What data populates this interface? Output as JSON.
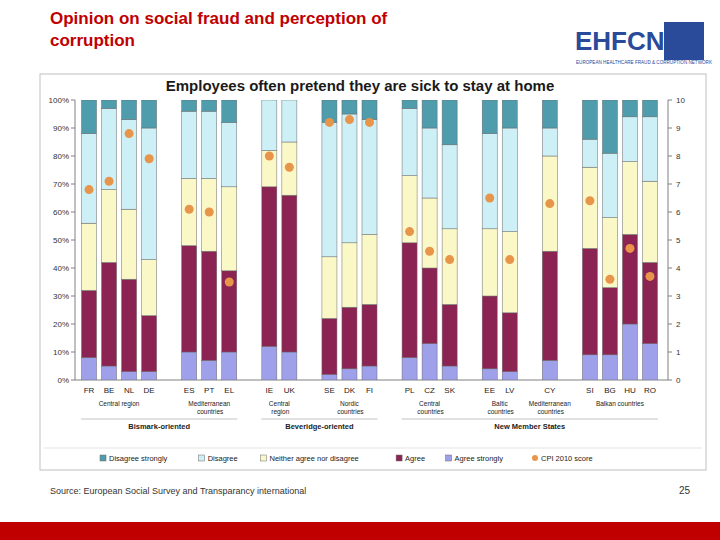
{
  "slide_title": "Opinion on social fraud and perception of corruption",
  "logo": {
    "text": "EHFCN",
    "subtitle": "EUROPEAN HEALTHCARE FRAUD & CORRUPTION NETWORK"
  },
  "source": "Source: European Social Survey and Transparancy international",
  "page_number": "25",
  "chart_data": {
    "type": "bar",
    "title": "Employees often pretend they are sick to stay at home",
    "stacked": true,
    "grid": false,
    "legend": "bottom",
    "categories": [
      "FR",
      "BE",
      "NL",
      "DE",
      "ES",
      "PT",
      "EL",
      "IE",
      "UK",
      "SE",
      "DK",
      "FI",
      "PL",
      "CZ",
      "SK",
      "EE",
      "LV",
      "CY",
      "SI",
      "BG",
      "HU",
      "RO"
    ],
    "groups": [
      {
        "label": "Central region",
        "categories": [
          "FR",
          "BE",
          "NL",
          "DE"
        ]
      },
      {
        "label": "Mediterranean countries",
        "categories": [
          "ES",
          "PT",
          "EL"
        ]
      },
      {
        "label": "Central region",
        "categories": [
          "IE",
          "UK"
        ]
      },
      {
        "label": "Nordic countries",
        "categories": [
          "SE",
          "DK",
          "FI"
        ]
      },
      {
        "label": "Central countries",
        "categories": [
          "PL",
          "CZ",
          "SK"
        ]
      },
      {
        "label": "Baltic countries",
        "categories": [
          "EE",
          "LV"
        ]
      },
      {
        "label": "Mediterranean countries",
        "categories": [
          "CY"
        ]
      },
      {
        "label": "Balkan countries",
        "categories": [
          "SI",
          "BG",
          "HU",
          "RO"
        ]
      }
    ],
    "supergroups": [
      {
        "label": "Bismark-oriented",
        "categories": [
          "FR",
          "BE",
          "NL",
          "DE",
          "ES",
          "PT",
          "EL"
        ]
      },
      {
        "label": "Beveridge-oriented",
        "categories": [
          "IE",
          "UK",
          "SE",
          "DK",
          "FI"
        ]
      },
      {
        "label": "New Member States",
        "categories": [
          "PL",
          "CZ",
          "SK",
          "EE",
          "LV",
          "CY",
          "SI",
          "BG",
          "HU",
          "RO"
        ]
      }
    ],
    "series": [
      {
        "name": "Disagree strongly",
        "color": "#4f9cac",
        "values": [
          12,
          3,
          7,
          10,
          4,
          4,
          8,
          0,
          0,
          8,
          5,
          7,
          3,
          10,
          16,
          12,
          10,
          10,
          14,
          19,
          6,
          6
        ]
      },
      {
        "name": "Disagree",
        "color": "#cdeff6",
        "values": [
          32,
          29,
          32,
          47,
          24,
          24,
          23,
          18,
          15,
          48,
          46,
          41,
          24,
          25,
          30,
          34,
          37,
          10,
          10,
          23,
          16,
          23
        ]
      },
      {
        "name": "Neither agree nor disagree",
        "color": "#fbf8c8",
        "values": [
          24,
          26,
          25,
          20,
          24,
          26,
          30,
          13,
          19,
          22,
          23,
          25,
          24,
          25,
          27,
          24,
          29,
          34,
          29,
          25,
          26,
          29
        ]
      },
      {
        "name": "Agree",
        "color": "#8c2453",
        "values": [
          24,
          37,
          33,
          20,
          38,
          39,
          29,
          57,
          56,
          20,
          22,
          22,
          41,
          27,
          22,
          26,
          21,
          39,
          38,
          24,
          32,
          29
        ]
      },
      {
        "name": "Agree strongly",
        "color": "#9fa0ea",
        "values": [
          8,
          5,
          3,
          3,
          10,
          7,
          10,
          12,
          10,
          2,
          4,
          5,
          8,
          13,
          5,
          4,
          3,
          7,
          9,
          9,
          20,
          13
        ]
      },
      {
        "name": "CPI 2010 score",
        "color": "#e8954c",
        "type": "scatter",
        "marker": "circle",
        "axis": "y2",
        "values": [
          6.8,
          7.1,
          8.8,
          7.9,
          6.1,
          6.0,
          3.5,
          8.0,
          7.6,
          9.2,
          9.3,
          9.2,
          5.3,
          4.6,
          4.3,
          6.5,
          4.3,
          6.3,
          6.4,
          3.6,
          4.7,
          3.7
        ]
      }
    ],
    "ylim": [
      0,
      100
    ],
    "yticks": [
      {
        "value": 0,
        "label": "0%"
      },
      {
        "value": 10,
        "label": "10%"
      },
      {
        "value": 20,
        "label": "20%"
      },
      {
        "value": 30,
        "label": "30%"
      },
      {
        "value": 40,
        "label": "40%"
      },
      {
        "value": 50,
        "label": "50%"
      },
      {
        "value": 60,
        "label": "60%"
      },
      {
        "value": 70,
        "label": "70%"
      },
      {
        "value": 80,
        "label": "80%"
      },
      {
        "value": 90,
        "label": "90%"
      },
      {
        "value": 100,
        "label": "100%"
      }
    ],
    "y2lim": [
      0,
      10
    ],
    "y2ticks": [
      0,
      1,
      2,
      3,
      4,
      5,
      6,
      7,
      8,
      9,
      10
    ]
  }
}
